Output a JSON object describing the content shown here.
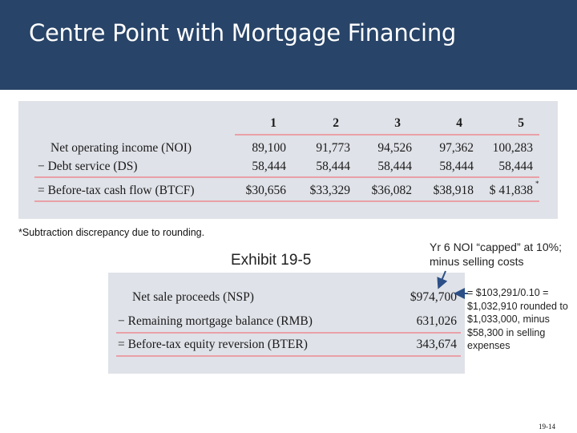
{
  "slide": {
    "title": "Centre Point with Mortgage Financing",
    "page_number": "19-14"
  },
  "cash_flow_table": {
    "years": [
      "1",
      "2",
      "3",
      "4",
      "5"
    ],
    "rows": [
      {
        "label": "Net operating income (NOI)",
        "values": [
          "89,100",
          "91,773",
          "94,526",
          "97,362",
          "100,283"
        ]
      },
      {
        "label": "− Debt service (DS)",
        "values": [
          "58,444",
          "58,444",
          "58,444",
          "58,444",
          "58,444"
        ]
      },
      {
        "label": "= Before-tax cash flow (BTCF)",
        "values": [
          "$30,656",
          "$33,329",
          "$36,082",
          "$38,918",
          "$ 41,838"
        ]
      }
    ],
    "last_value_mark": "*",
    "footnote": "*Subtraction discrepancy due to rounding."
  },
  "exhibit_label": "Exhibit 19-5",
  "sale_table": {
    "rows": [
      {
        "label": "Net sale proceeds (NSP)",
        "value": "$974,700"
      },
      {
        "label": "− Remaining mortgage balance (RMB)",
        "value": "631,026"
      },
      {
        "label": "= Before-tax equity reversion (BTER)",
        "value": "343,674"
      }
    ]
  },
  "annotations": {
    "top_note": "Yr 6 NOI “capped” at 10%; minus selling costs",
    "side_note": "= $103,291/0.10 = $1,032,910 rounded to $1,033,000, minus $58,300 in selling expenses"
  },
  "colors": {
    "header_bg": "#284468",
    "panel_bg": "#dfe2e8",
    "rule": "#e9a0a8",
    "arrow": "#2b4f86"
  }
}
